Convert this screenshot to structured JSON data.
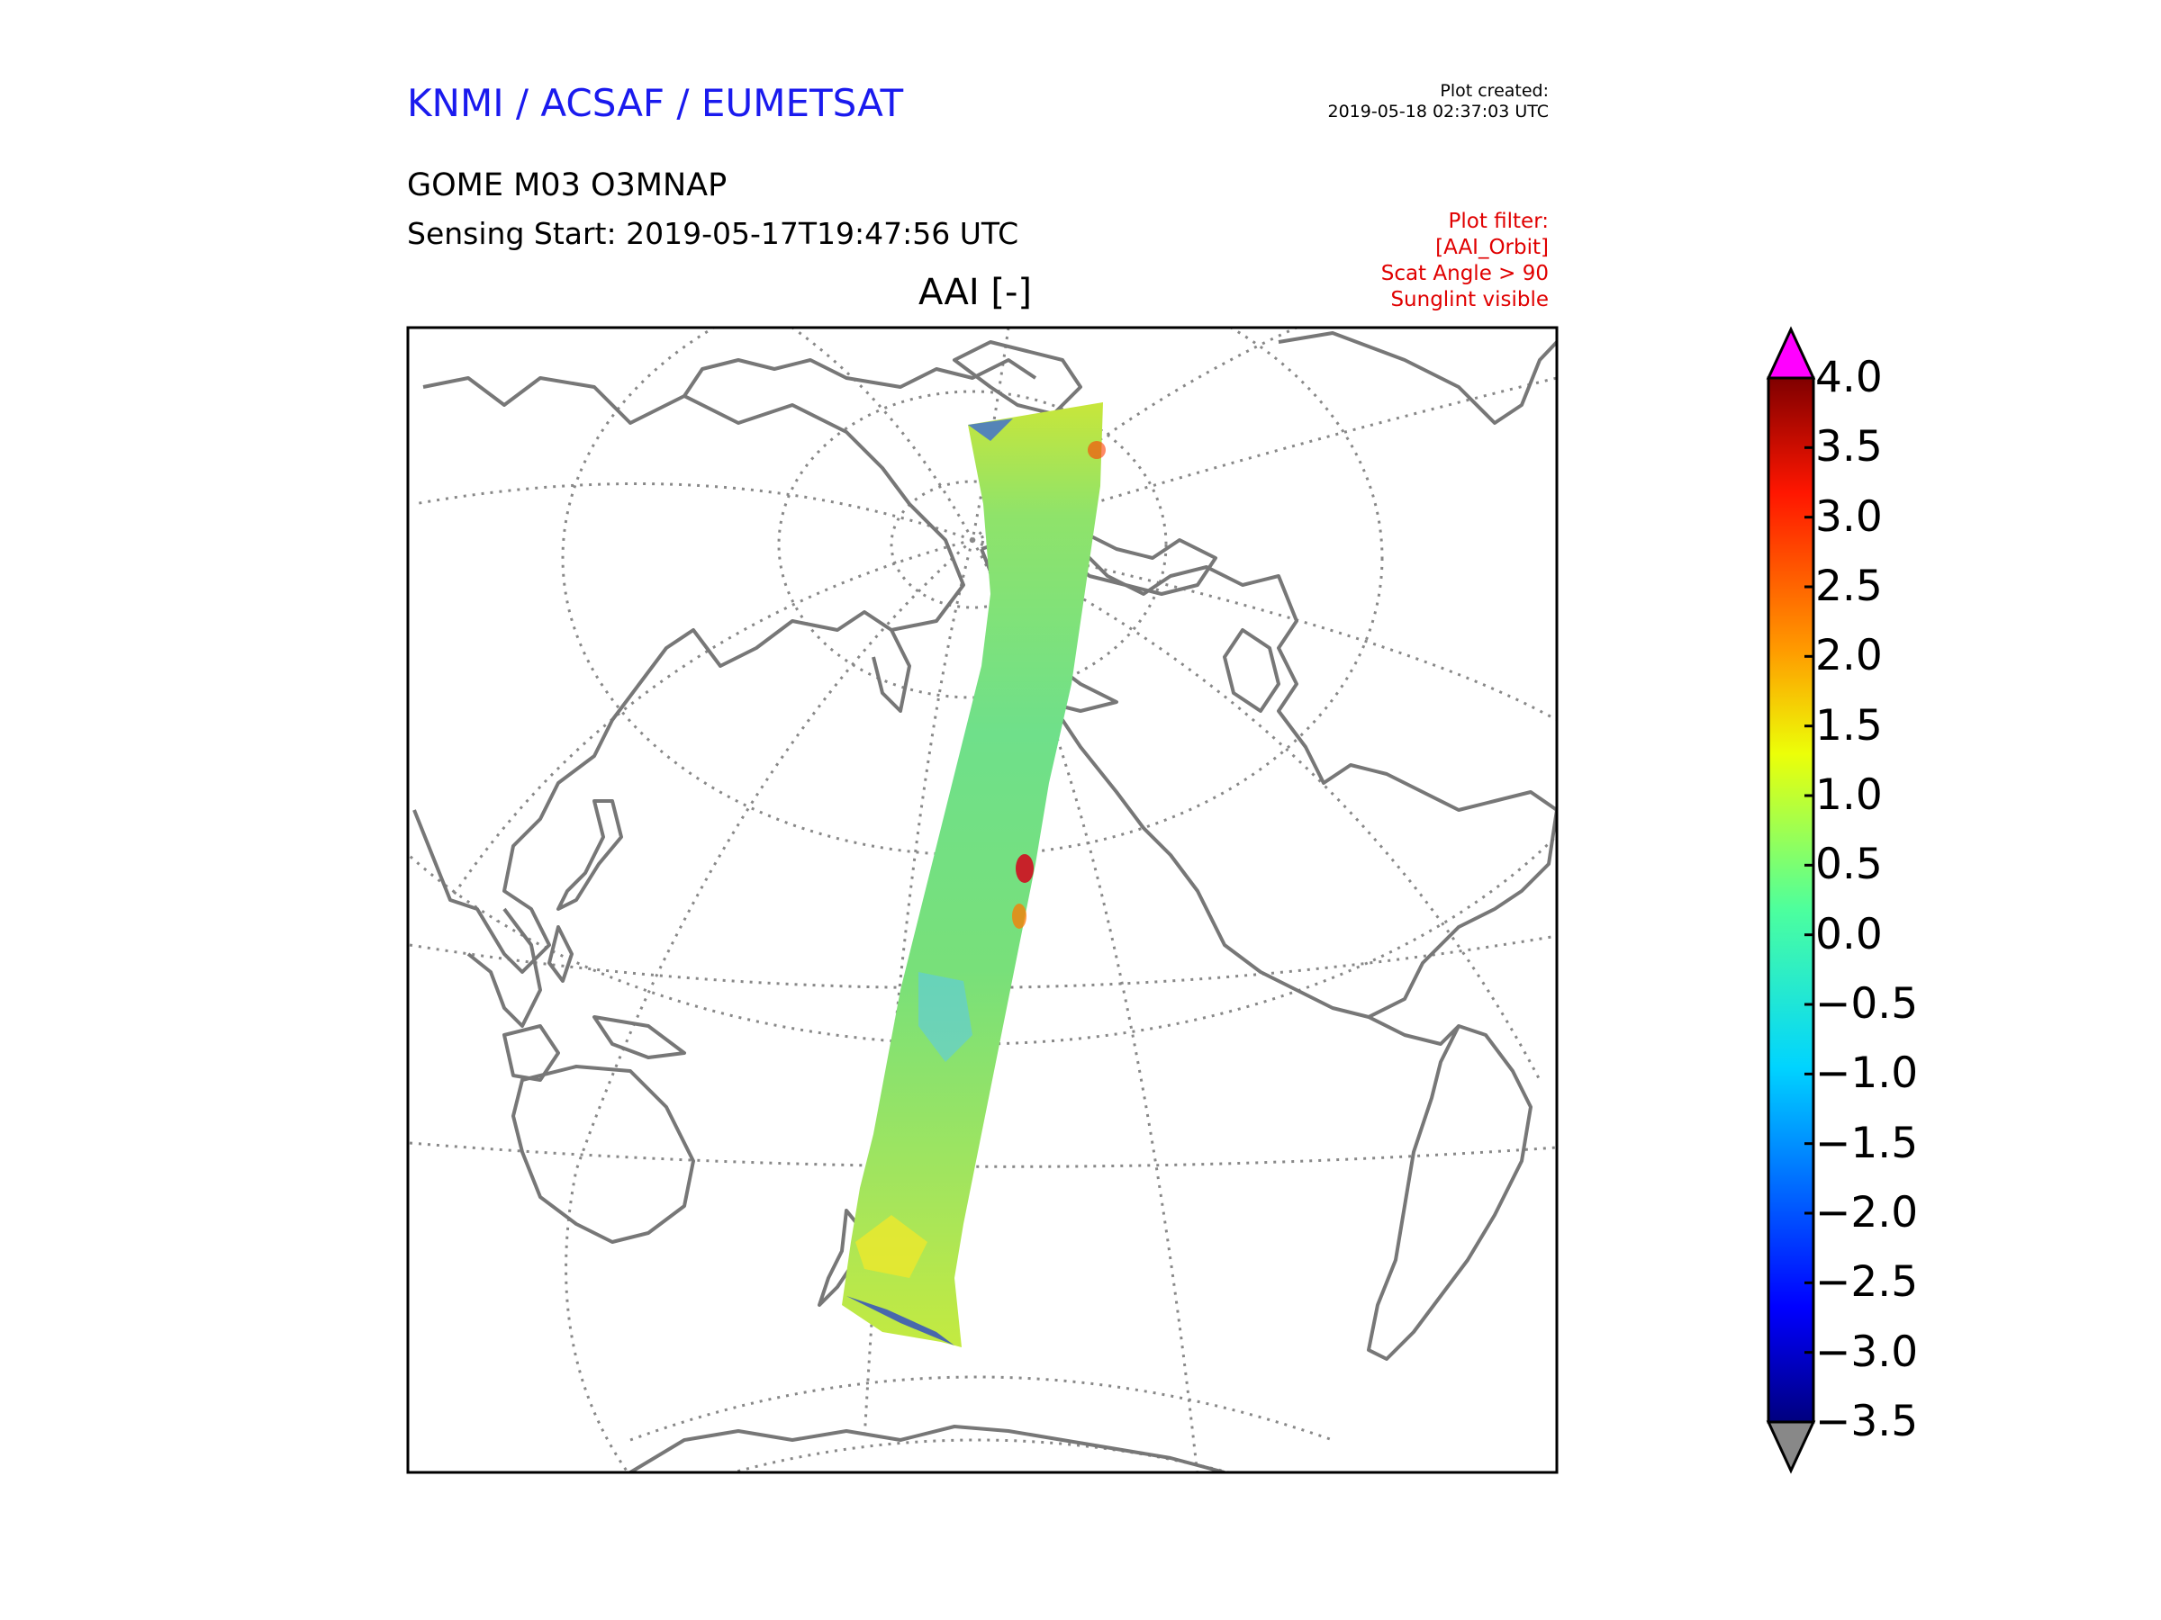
{
  "header": {
    "agency": "KNMI / ACSAF / EUMETSAT",
    "plot_created_label": "Plot created:",
    "plot_created_value": "2019-05-18 02:37:03 UTC",
    "product": "GOME M03 O3MNAP",
    "sensing_start": "Sensing Start: 2019-05-17T19:47:56 UTC"
  },
  "plot_filter": {
    "label": "Plot filter:",
    "lines": [
      "[AAI_Orbit]",
      "Scat Angle > 90",
      "Sunglint visible"
    ]
  },
  "map": {
    "title": "AAI [-]",
    "projection": "north polar view",
    "swath": "single GOME orbit, Arctic to South Pacific"
  },
  "colorbar": {
    "min": -3.5,
    "max": 4.0,
    "ticks": [
      "4.0",
      "3.5",
      "3.0",
      "2.5",
      "2.0",
      "1.5",
      "1.0",
      "0.5",
      "0.0",
      "−0.5",
      "−1.0",
      "−1.5",
      "−2.0",
      "−2.5",
      "−3.0",
      "−3.5"
    ],
    "over_color": "#ff00ff",
    "under_color": "#888888"
  },
  "colors": {
    "coastline": "#777777",
    "graticule": "#888888",
    "agency_text": "#1a1aee",
    "filter_text": "#e00000"
  }
}
